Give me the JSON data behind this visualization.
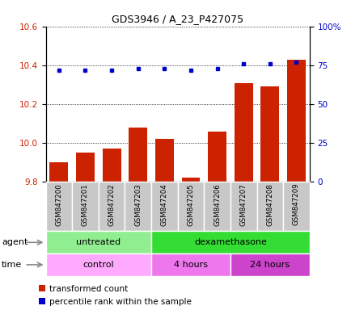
{
  "title": "GDS3946 / A_23_P427075",
  "samples": [
    "GSM847200",
    "GSM847201",
    "GSM847202",
    "GSM847203",
    "GSM847204",
    "GSM847205",
    "GSM847206",
    "GSM847207",
    "GSM847208",
    "GSM847209"
  ],
  "transformed_count": [
    9.9,
    9.95,
    9.97,
    10.08,
    10.02,
    9.82,
    10.06,
    10.31,
    10.29,
    10.43
  ],
  "percentile_rank": [
    72,
    72,
    72,
    73,
    73,
    72,
    73,
    76,
    76,
    77
  ],
  "ylim_left": [
    9.8,
    10.6
  ],
  "ylim_right": [
    0,
    100
  ],
  "yticks_left": [
    9.8,
    10.0,
    10.2,
    10.4,
    10.6
  ],
  "yticks_right": [
    0,
    25,
    50,
    75,
    100
  ],
  "bar_color": "#cc2200",
  "dot_color": "#0000cc",
  "agent_labels": [
    {
      "label": "untreated",
      "start": 0,
      "end": 4,
      "color": "#90ee90"
    },
    {
      "label": "dexamethasone",
      "start": 4,
      "end": 10,
      "color": "#33dd33"
    }
  ],
  "time_labels": [
    {
      "label": "control",
      "start": 0,
      "end": 4,
      "color": "#ffaaff"
    },
    {
      "label": "4 hours",
      "start": 4,
      "end": 7,
      "color": "#ee77ee"
    },
    {
      "label": "24 hours",
      "start": 7,
      "end": 10,
      "color": "#cc44cc"
    }
  ],
  "legend_bar_label": "transformed count",
  "legend_dot_label": "percentile rank within the sample",
  "sample_bg_color": "#c8c8c8"
}
